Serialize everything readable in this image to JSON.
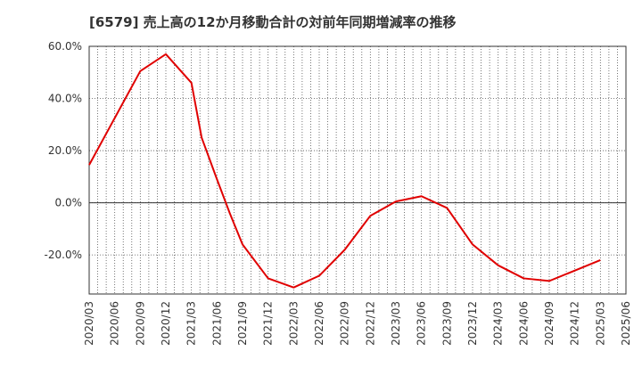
{
  "chart_data": {
    "type": "line",
    "title": "[6579]  売上高の12か月移動合計の対前年同期増減率の推移",
    "xlabel": "",
    "ylabel": "",
    "ylim": [
      -35,
      60
    ],
    "y_ticks": [
      {
        "value": 60,
        "label": "60.0%"
      },
      {
        "value": 40,
        "label": "40.0%"
      },
      {
        "value": 20,
        "label": "20.0%"
      },
      {
        "value": 0,
        "label": "0.0%"
      },
      {
        "value": -20,
        "label": "-20.0%"
      }
    ],
    "categories": [
      "2020/03",
      "2020/06",
      "2020/09",
      "2020/12",
      "2021/03",
      "2021/06",
      "2021/09",
      "2021/12",
      "2022/03",
      "2022/06",
      "2022/09",
      "2022/12",
      "2023/03",
      "2023/06",
      "2023/09",
      "2023/12",
      "2024/03",
      "2024/06",
      "2024/09",
      "2024/12",
      "2025/03",
      "2025/06"
    ],
    "series": [
      {
        "name": "対前年同期増減率",
        "color": "#e00000",
        "x": [
          0,
          1,
          2,
          3,
          4,
          4.4,
          5,
          5.5,
          6,
          7,
          8,
          9,
          10,
          11,
          12,
          13,
          14,
          15,
          16,
          17,
          18,
          19,
          20
        ],
        "values": [
          14.5,
          32.5,
          50.5,
          57,
          46,
          25,
          9,
          -4,
          -16,
          -29,
          -32.5,
          -28,
          -18,
          -5,
          0.5,
          2.5,
          -2,
          -16,
          -24,
          -29,
          -30,
          -26,
          -22
        ]
      }
    ],
    "grid": true
  }
}
